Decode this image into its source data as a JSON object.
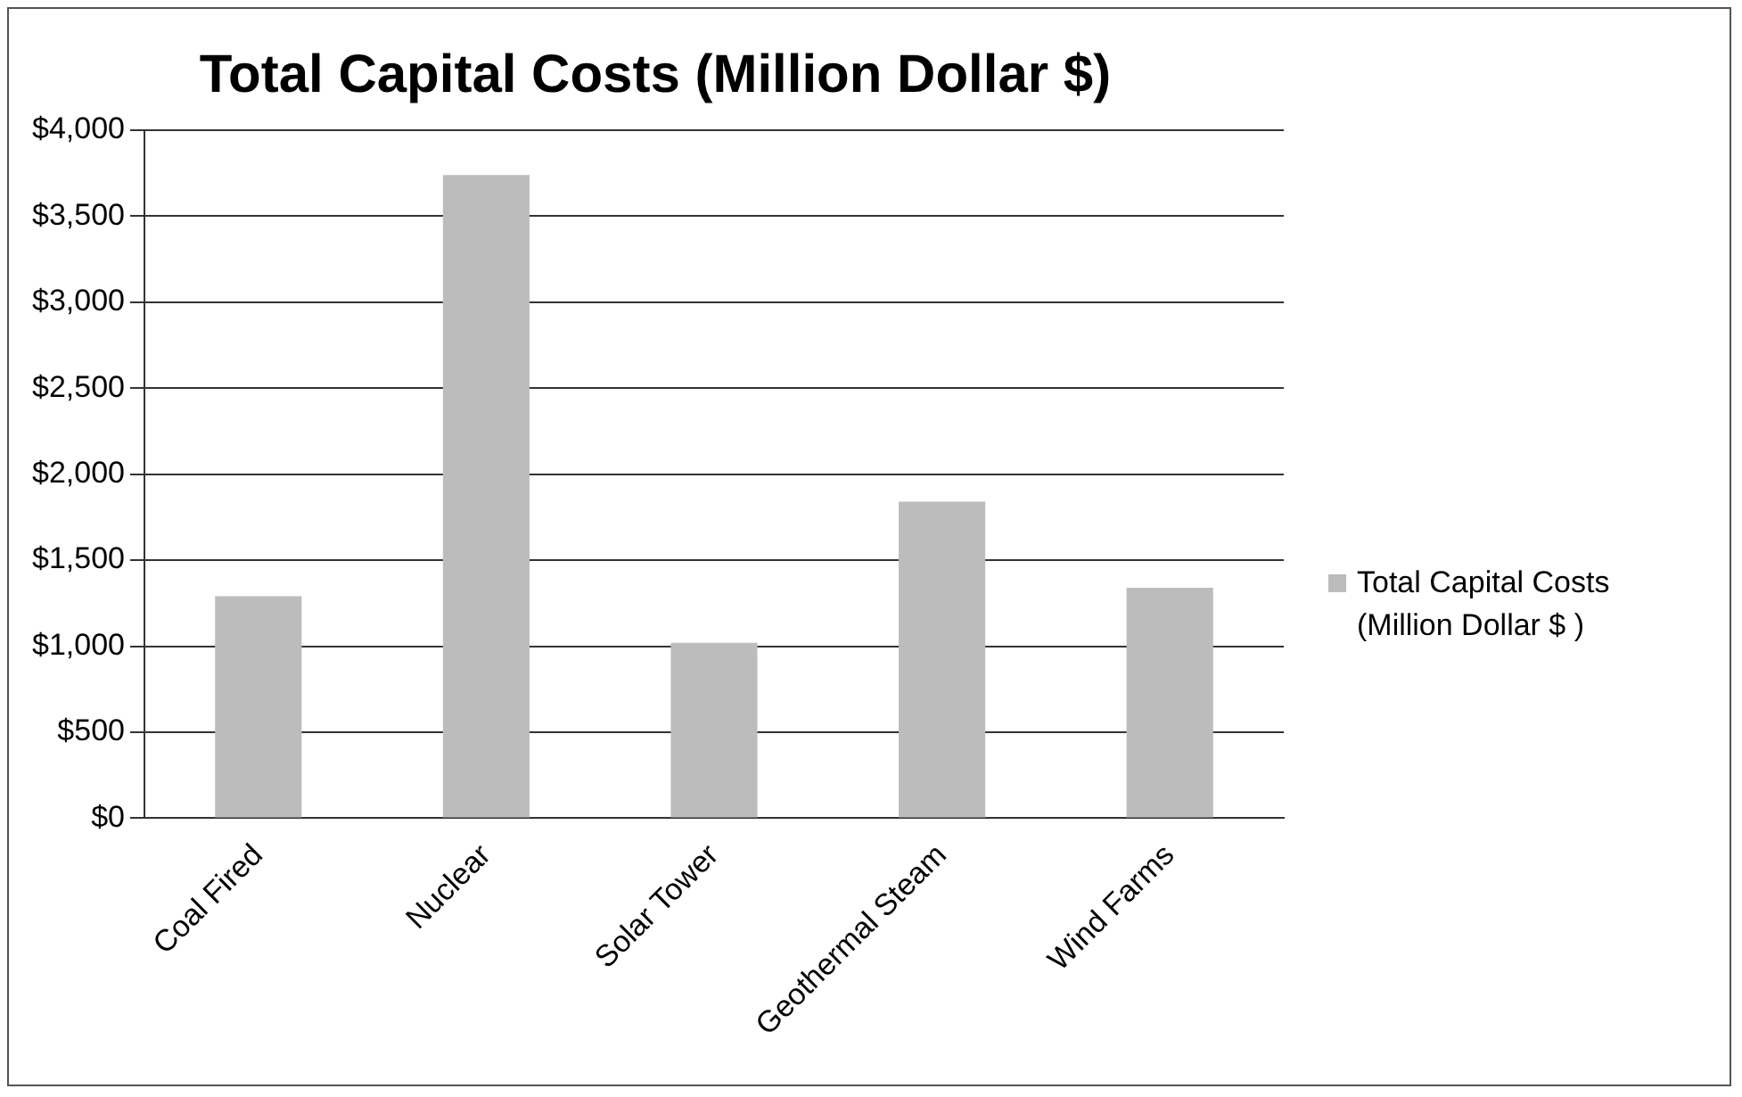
{
  "chart_data": {
    "type": "bar",
    "title": "Total Capital Costs (Million Dollar $)",
    "categories": [
      "Coal Fired",
      "Nuclear",
      "Solar Tower",
      "Geothermal Steam",
      "Wind Farms"
    ],
    "series": [
      {
        "name": "Total Capital Costs (Million Dollar $ )",
        "color": "#bcbcbc",
        "values": [
          1290,
          3740,
          1020,
          1840,
          1340
        ]
      }
    ],
    "ylim": [
      0,
      4000
    ],
    "yticks": [
      {
        "value": 0,
        "label": "$0"
      },
      {
        "value": 500,
        "label": "$500"
      },
      {
        "value": 1000,
        "label": "$1,000"
      },
      {
        "value": 1500,
        "label": "$1,500"
      },
      {
        "value": 2000,
        "label": "$2,000"
      },
      {
        "value": 2500,
        "label": "$2,500"
      },
      {
        "value": 3000,
        "label": "$3,000"
      },
      {
        "value": 3500,
        "label": "$3,500"
      },
      {
        "value": 4000,
        "label": "$4,000"
      }
    ],
    "grid": "y",
    "legend": "right"
  }
}
